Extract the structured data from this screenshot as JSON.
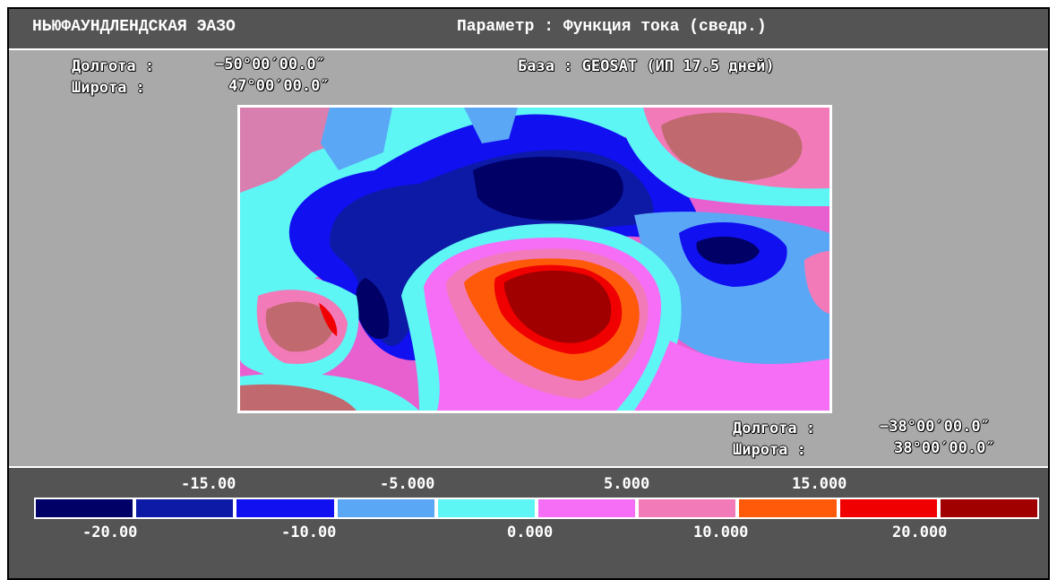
{
  "header": {
    "region": "НЬЮФАУНДЛЕНДСКАЯ ЭАЗО",
    "parameter": "Параметр : Функция тока (сведр.)"
  },
  "top_left": {
    "lon_label": "Долгота :",
    "lon_value": "−50°00′00.0″",
    "lat_label": "Широта :",
    "lat_value": "47°00′00.0″"
  },
  "base": "База : GEOSAT (ИП 17.5 дней)",
  "bottom_right": {
    "lon_label": "Долгота :",
    "lon_value": "−38°00′00.0″",
    "lat_label": "Широта :",
    "lat_value": "38°00′00.0″"
  },
  "legend": {
    "top_labels": [
      "-15.00",
      "-5.000",
      "5.000",
      "15.000"
    ],
    "bottom_labels": [
      "-20.00",
      "-10.00",
      "0.000",
      "10.000",
      "20.000"
    ],
    "colors": [
      "#000066",
      "#0d1aa6",
      "#1010f0",
      "#5aa8f5",
      "#5ef5f5",
      "#f56ef5",
      "#f27ab8",
      "#ff5a0a",
      "#f00000",
      "#a00000"
    ]
  },
  "map_colors": {
    "navy": "#000066",
    "dark_blue": "#0d1aa6",
    "blue": "#1010f0",
    "light_blue": "#5aa8f5",
    "cyan": "#5ef5f5",
    "magenta": "#f56ef5",
    "pink": "#f27ab8",
    "orange": "#ff5a0a",
    "red": "#f00000",
    "dark_red": "#a00000",
    "dusty_pink": "#d87fb0",
    "brownish": "#c06a70"
  }
}
